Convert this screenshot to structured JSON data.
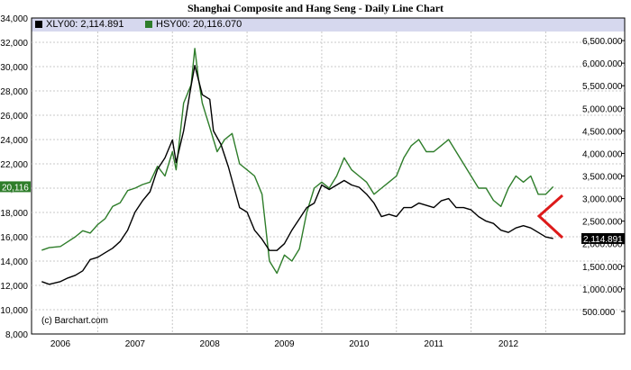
{
  "chart_data": {
    "type": "line",
    "title": "Shanghai Composite and Hang Seng - Daily Line Chart",
    "copyright": "(c) Barchart.com",
    "x_tick_labels": [
      "2006",
      "2007",
      "2008",
      "2009",
      "2010",
      "2011",
      "2012"
    ],
    "left_axis": {
      "ylim": [
        8000,
        34000
      ],
      "ticks": [
        "8,000",
        "10,000",
        "12,000",
        "14,000",
        "16,000",
        "18,000",
        "20,000",
        "22,000",
        "24,000",
        "26,000",
        "28,000",
        "30,000",
        "32,000",
        "34,000"
      ],
      "tick_values": [
        8000,
        10000,
        12000,
        14000,
        16000,
        18000,
        20000,
        22000,
        24000,
        26000,
        28000,
        30000,
        32000,
        34000
      ]
    },
    "right_axis": {
      "ylim": [
        0,
        7000
      ],
      "ticks": [
        "500.000",
        "1,000.000",
        "1,500.000",
        "2,000.000",
        "2,500.000",
        "3,000.000",
        "3,500.000",
        "4,000.000",
        "4,500.000",
        "5,000.000",
        "5,500.000",
        "6,000.000",
        "6,500.000"
      ],
      "tick_values": [
        500,
        1000,
        1500,
        2000,
        2500,
        3000,
        3500,
        4000,
        4500,
        5000,
        5500,
        6000,
        6500
      ]
    },
    "series": [
      {
        "name": "XLY00",
        "legend_label": "XLY00: 2,114.891",
        "last_label": "2,114.891",
        "axis": "right",
        "color": "#000000",
        "x": [
          2005.75,
          2005.85,
          2006.0,
          2006.1,
          2006.2,
          2006.3,
          2006.4,
          2006.5,
          2006.6,
          2006.7,
          2006.8,
          2006.9,
          2007.0,
          2007.1,
          2007.2,
          2007.3,
          2007.4,
          2007.5,
          2007.55,
          2007.65,
          2007.75,
          2007.8,
          2007.9,
          2008.0,
          2008.05,
          2008.15,
          2008.25,
          2008.3,
          2008.4,
          2008.5,
          2008.6,
          2008.7,
          2008.8,
          2008.9,
          2009.0,
          2009.1,
          2009.2,
          2009.3,
          2009.4,
          2009.5,
          2009.6,
          2009.7,
          2009.8,
          2009.9,
          2010.0,
          2010.1,
          2010.2,
          2010.3,
          2010.4,
          2010.5,
          2010.6,
          2010.7,
          2010.8,
          2010.9,
          2011.0,
          2011.1,
          2011.2,
          2011.3,
          2011.4,
          2011.5,
          2011.6,
          2011.7,
          2011.8,
          2011.9,
          2012.0,
          2012.1,
          2012.2,
          2012.3,
          2012.4,
          2012.5,
          2012.6
        ],
        "y": [
          1160,
          1100,
          1160,
          1240,
          1300,
          1400,
          1650,
          1700,
          1800,
          1900,
          2050,
          2300,
          2700,
          2950,
          3150,
          3650,
          3900,
          4300,
          3800,
          4500,
          5500,
          5950,
          5300,
          5200,
          4500,
          4200,
          3700,
          3400,
          2800,
          2700,
          2300,
          2100,
          1850,
          1850,
          2000,
          2300,
          2550,
          2800,
          2900,
          3300,
          3200,
          3300,
          3400,
          3300,
          3250,
          3100,
          2900,
          2600,
          2650,
          2600,
          2800,
          2800,
          2900,
          2850,
          2800,
          2950,
          3000,
          2800,
          2800,
          2750,
          2600,
          2500,
          2450,
          2300,
          2250,
          2350,
          2400,
          2350,
          2250,
          2150,
          2115
        ]
      },
      {
        "name": "HSY00",
        "legend_label": "HSY00: 20,116.070",
        "last_label": "20,116",
        "axis": "left",
        "color": "#2e7d2a",
        "x": [
          2005.75,
          2005.85,
          2006.0,
          2006.1,
          2006.2,
          2006.3,
          2006.4,
          2006.5,
          2006.6,
          2006.7,
          2006.8,
          2006.9,
          2007.0,
          2007.1,
          2007.2,
          2007.3,
          2007.4,
          2007.5,
          2007.55,
          2007.65,
          2007.75,
          2007.8,
          2007.85,
          2007.9,
          2008.0,
          2008.1,
          2008.2,
          2008.3,
          2008.4,
          2008.5,
          2008.6,
          2008.7,
          2008.8,
          2008.9,
          2009.0,
          2009.1,
          2009.2,
          2009.3,
          2009.4,
          2009.5,
          2009.6,
          2009.7,
          2009.8,
          2009.9,
          2010.0,
          2010.1,
          2010.2,
          2010.3,
          2010.4,
          2010.5,
          2010.6,
          2010.7,
          2010.8,
          2010.9,
          2011.0,
          2011.1,
          2011.2,
          2011.3,
          2011.4,
          2011.5,
          2011.6,
          2011.7,
          2011.8,
          2011.9,
          2012.0,
          2012.1,
          2012.2,
          2012.3,
          2012.4,
          2012.5,
          2012.6
        ],
        "y": [
          14900,
          15100,
          15200,
          15600,
          16000,
          16500,
          16300,
          17000,
          17500,
          18500,
          18800,
          19800,
          20000,
          20300,
          20500,
          21800,
          21000,
          23000,
          21500,
          27000,
          28500,
          31500,
          29000,
          27000,
          25000,
          23000,
          24000,
          24500,
          22000,
          21500,
          21000,
          19500,
          14000,
          13000,
          14500,
          14000,
          15000,
          18000,
          20000,
          20500,
          20000,
          21000,
          22500,
          21500,
          21000,
          20500,
          19500,
          20000,
          20500,
          21000,
          22500,
          23500,
          24000,
          23000,
          23000,
          23500,
          24000,
          23000,
          22000,
          21000,
          20000,
          20000,
          19000,
          18500,
          20000,
          21000,
          20500,
          21000,
          19500,
          19500,
          20116
        ]
      }
    ]
  }
}
